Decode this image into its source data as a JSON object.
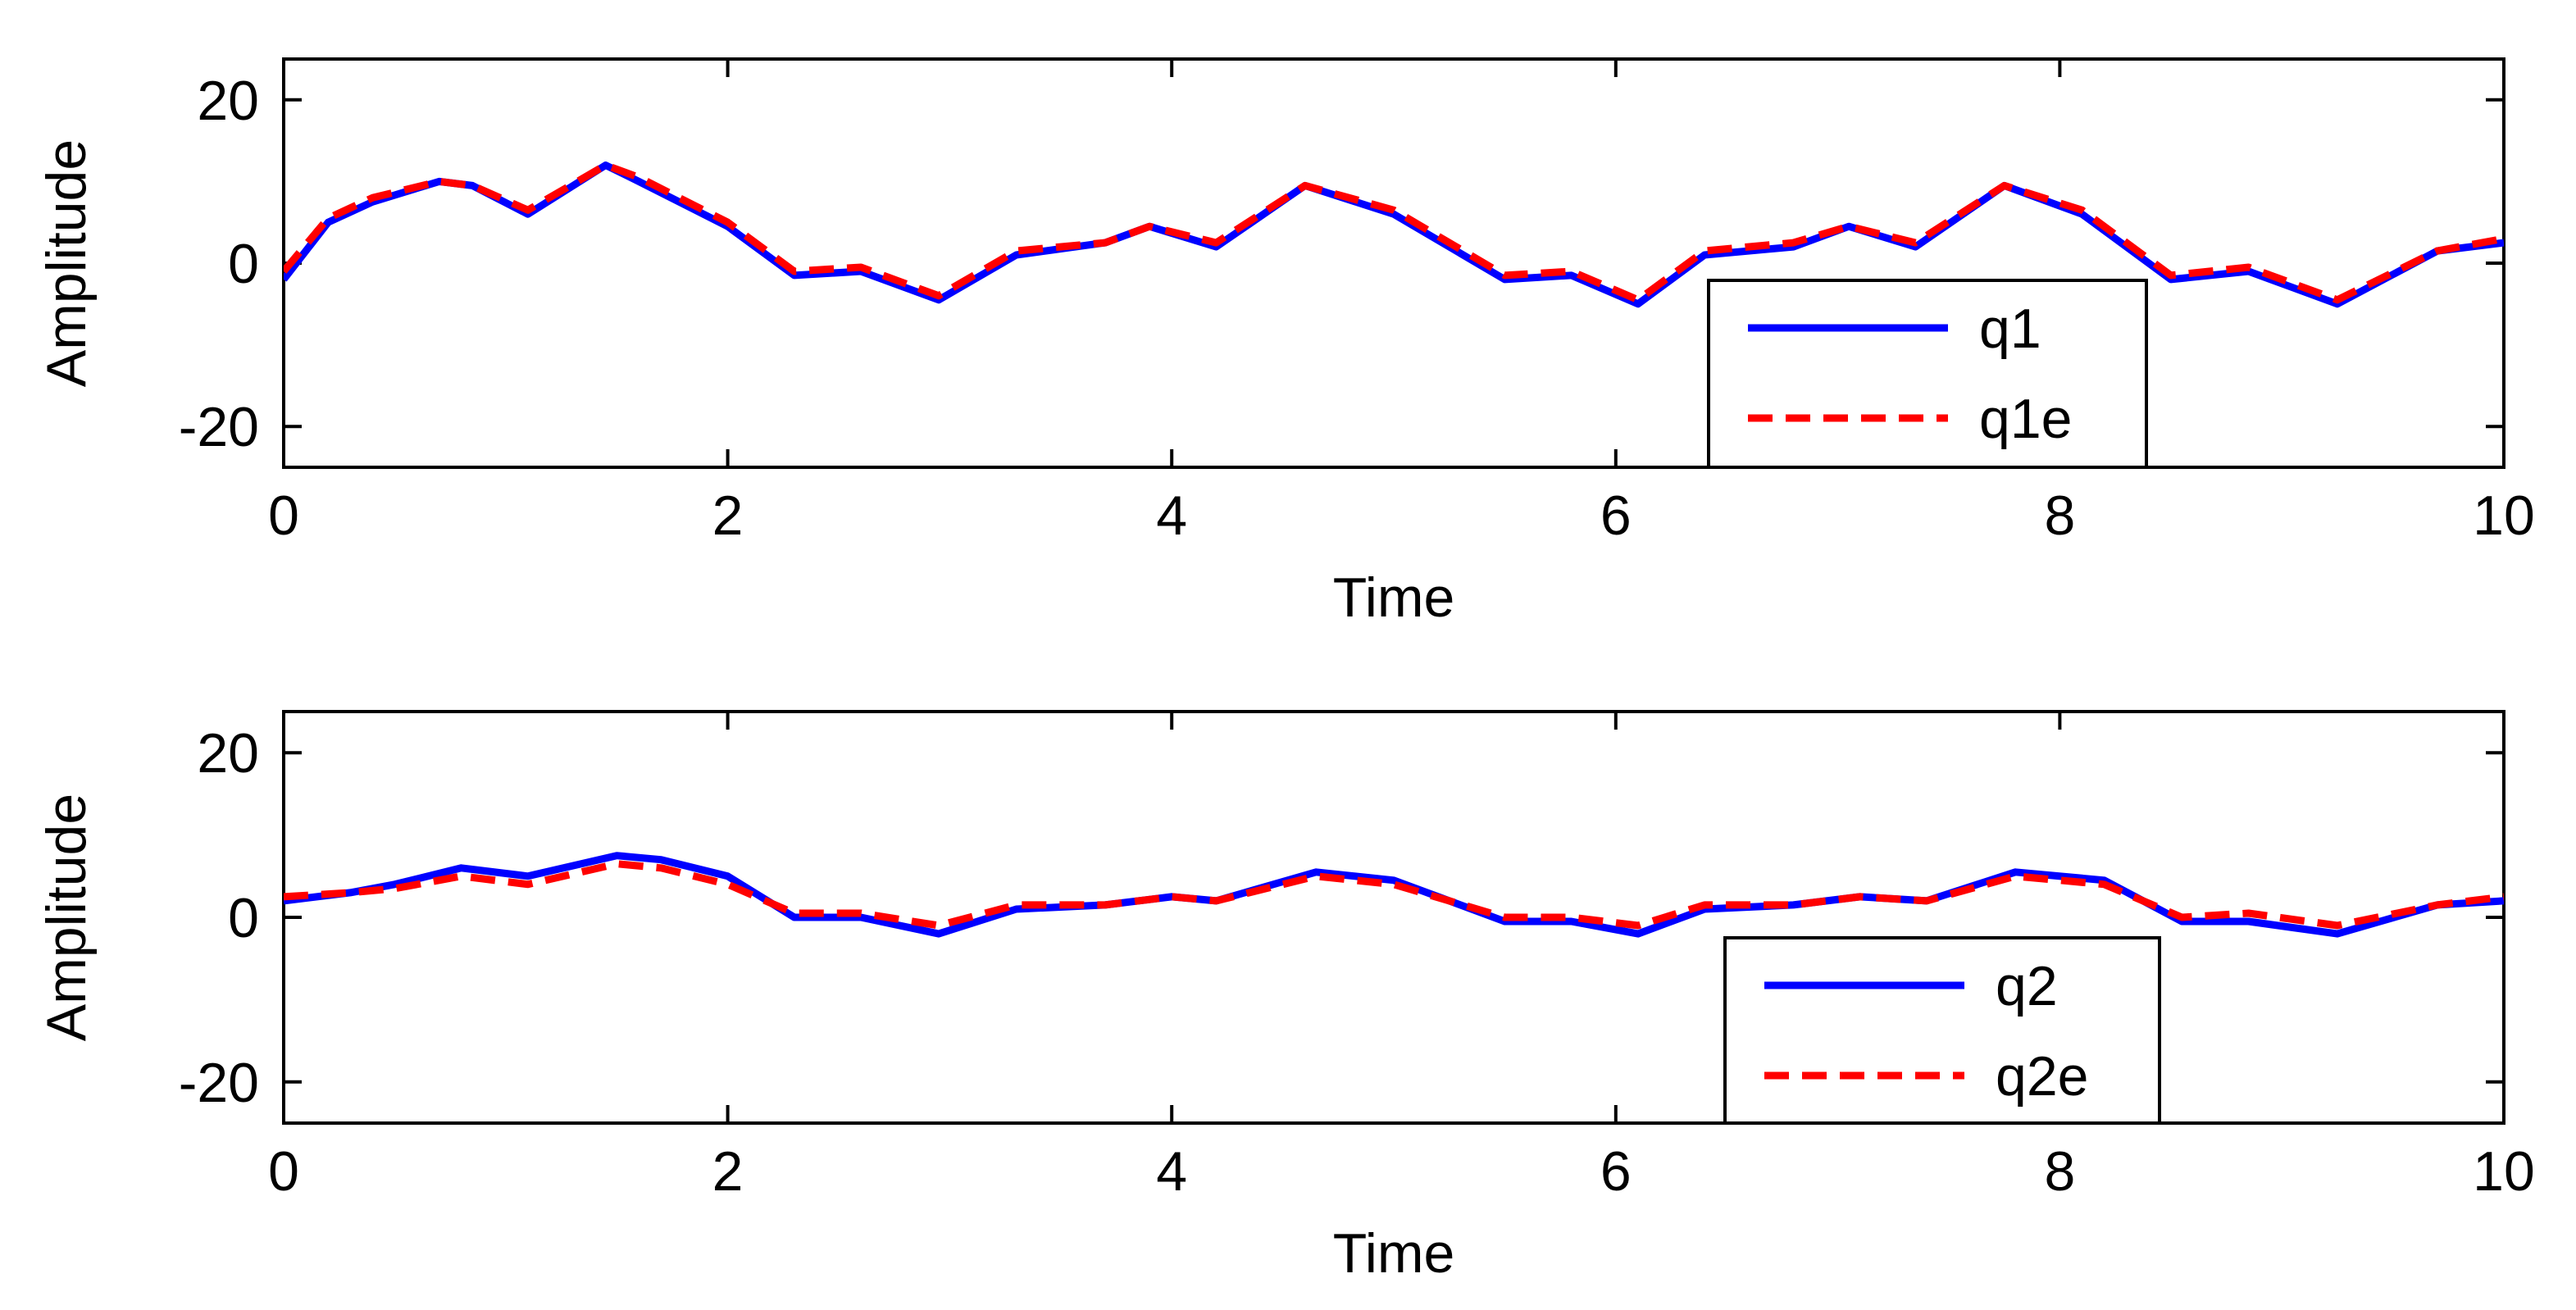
{
  "chart_data": [
    {
      "type": "line",
      "title": "",
      "xlabel": "Time",
      "ylabel": "Amplitude",
      "xlim": [
        0,
        10
      ],
      "ylim": [
        -25,
        25
      ],
      "xticks": [
        0,
        2,
        4,
        6,
        8,
        10
      ],
      "yticks": [
        -20,
        0,
        20
      ],
      "xtick_labels": [
        "0",
        "2",
        "4",
        "6",
        "8",
        "10"
      ],
      "ytick_labels": [
        "-20",
        "0",
        "20"
      ],
      "grid": false,
      "legend_position": "bottom-right",
      "x": [
        0,
        0.2,
        0.4,
        0.7,
        0.85,
        1.1,
        1.45,
        1.6,
        2.0,
        2.3,
        2.6,
        2.95,
        3.3,
        3.7,
        3.9,
        4.2,
        4.6,
        5.0,
        5.5,
        5.8,
        6.1,
        6.4,
        6.8,
        7.05,
        7.35,
        7.75,
        8.1,
        8.5,
        8.85,
        9.25,
        9.7,
        10.0
      ],
      "series": [
        {
          "name": "q1",
          "color": "#0000ff",
          "style": "solid",
          "values": [
            -2,
            5,
            7.5,
            10,
            9.5,
            6,
            12,
            10,
            4.5,
            -1.5,
            -1,
            -4.5,
            1,
            2.5,
            4.5,
            2,
            9.5,
            6,
            -2,
            -1.5,
            -5,
            1,
            2,
            4.5,
            2,
            9.5,
            6,
            -2,
            -1,
            -5,
            1.5,
            2.5
          ]
        },
        {
          "name": "q1e",
          "color": "#ff0000",
          "style": "dashed",
          "values": [
            -1,
            5.5,
            8,
            10,
            9.5,
            6.5,
            12,
            10.5,
            5,
            -1,
            -0.5,
            -4,
            1.5,
            2.5,
            4.5,
            2.5,
            9.5,
            6.5,
            -1.5,
            -1,
            -4.5,
            1.5,
            2.5,
            4.5,
            2.5,
            9.5,
            6.5,
            -1.5,
            -0.5,
            -4.5,
            1.5,
            3
          ]
        }
      ]
    },
    {
      "type": "line",
      "title": "",
      "xlabel": "Time",
      "ylabel": "Amplitude",
      "xlim": [
        0,
        10
      ],
      "ylim": [
        -25,
        25
      ],
      "xticks": [
        0,
        2,
        4,
        6,
        8,
        10
      ],
      "yticks": [
        -20,
        0,
        20
      ],
      "xtick_labels": [
        "0",
        "2",
        "4",
        "6",
        "8",
        "10"
      ],
      "ytick_labels": [
        "-20",
        "0",
        "20"
      ],
      "grid": false,
      "legend_position": "bottom-right",
      "x": [
        0,
        0.3,
        0.5,
        0.8,
        1.1,
        1.5,
        1.7,
        2.0,
        2.3,
        2.6,
        2.95,
        3.3,
        3.7,
        4.0,
        4.2,
        4.65,
        5.0,
        5.5,
        5.8,
        6.1,
        6.4,
        6.8,
        7.1,
        7.4,
        7.8,
        8.2,
        8.55,
        8.85,
        9.25,
        9.7,
        10.0
      ],
      "series": [
        {
          "name": "q2",
          "color": "#0000ff",
          "style": "solid",
          "values": [
            2,
            3,
            4,
            6,
            5,
            7.5,
            7,
            5,
            0,
            0,
            -2,
            1,
            1.5,
            2.5,
            2,
            5.5,
            4.5,
            -0.5,
            -0.5,
            -2,
            1,
            1.5,
            2.5,
            2,
            5.5,
            4.5,
            -0.5,
            -0.5,
            -2,
            1.5,
            2
          ]
        },
        {
          "name": "q2e",
          "color": "#ff0000",
          "style": "dashed",
          "values": [
            2.5,
            3,
            3.5,
            5,
            4,
            6.5,
            6,
            4,
            0.5,
            0.5,
            -1,
            1.5,
            1.5,
            2.5,
            2,
            5,
            4,
            0,
            0,
            -1,
            1.5,
            1.5,
            2.5,
            2,
            5,
            4,
            0,
            0.5,
            -1,
            1.5,
            2.5
          ]
        }
      ]
    }
  ]
}
